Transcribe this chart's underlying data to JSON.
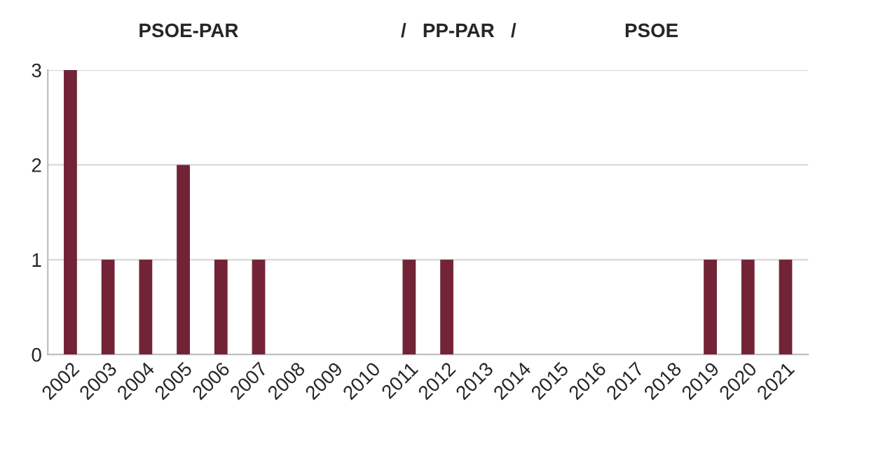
{
  "chart_data": {
    "type": "bar",
    "title": "PSOE-PAR                              /   PP-PAR   /                    PSOE",
    "categories": [
      "2002",
      "2003",
      "2004",
      "2005",
      "2006",
      "2007",
      "2008",
      "2009",
      "2010",
      "2011",
      "2012",
      "2013",
      "2014",
      "2015",
      "2016",
      "2017",
      "2018",
      "2019",
      "2020",
      "2021"
    ],
    "values": [
      3,
      1,
      1,
      2,
      1,
      1,
      0,
      0,
      0,
      1,
      1,
      0,
      0,
      0,
      0,
      0,
      0,
      1,
      1,
      1
    ],
    "color": "#722436",
    "ylim": [
      0,
      3
    ],
    "yticks": [
      0,
      1,
      2,
      3
    ],
    "grid": "y"
  }
}
